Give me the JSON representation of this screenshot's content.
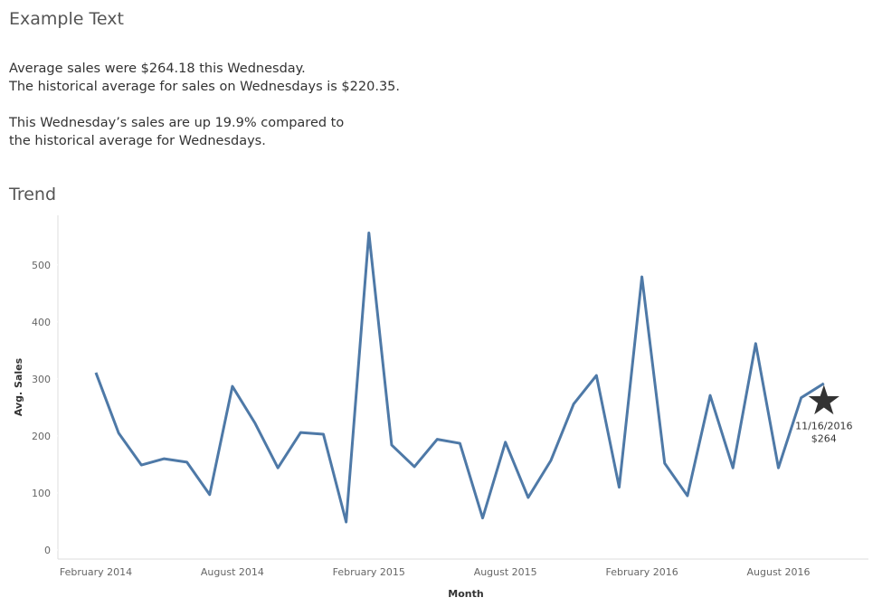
{
  "header": {
    "title": "Example Text"
  },
  "text": {
    "paragraphs": [
      [
        "Average sales were $264.18 this Wednesday.",
        "The historical average for sales on Wednesdays is $220.35."
      ],
      [
        "This Wednesday’s sales are up 19.9% compared to",
        "the historical average for Wednesdays."
      ]
    ]
  },
  "chart_data": {
    "type": "line",
    "title": "Trend",
    "x_label": "Month",
    "y_label": "Avg. Sales",
    "categories": [
      "February 2014",
      null,
      null,
      null,
      null,
      null,
      "August 2014",
      null,
      null,
      null,
      null,
      null,
      "February 2015",
      null,
      null,
      null,
      null,
      null,
      "August 2015",
      null,
      null,
      null,
      null,
      null,
      "February 2016",
      null,
      null,
      null,
      null,
      null,
      "August 2016",
      null,
      null
    ],
    "values": [
      311,
      205,
      149,
      160,
      154,
      97,
      287,
      222,
      144,
      206,
      203,
      49,
      556,
      184,
      146,
      194,
      187,
      56,
      189,
      92,
      157,
      256,
      306,
      110,
      479,
      152,
      95,
      271,
      144,
      362,
      144,
      267,
      292
    ],
    "color": "#4e79a7",
    "ylim": [
      -16,
      587
    ],
    "yticks": [
      0,
      100,
      200,
      300,
      400,
      500
    ],
    "marker": {
      "x_label": "11/16/2016",
      "value": 264,
      "value_label": "$264"
    }
  }
}
